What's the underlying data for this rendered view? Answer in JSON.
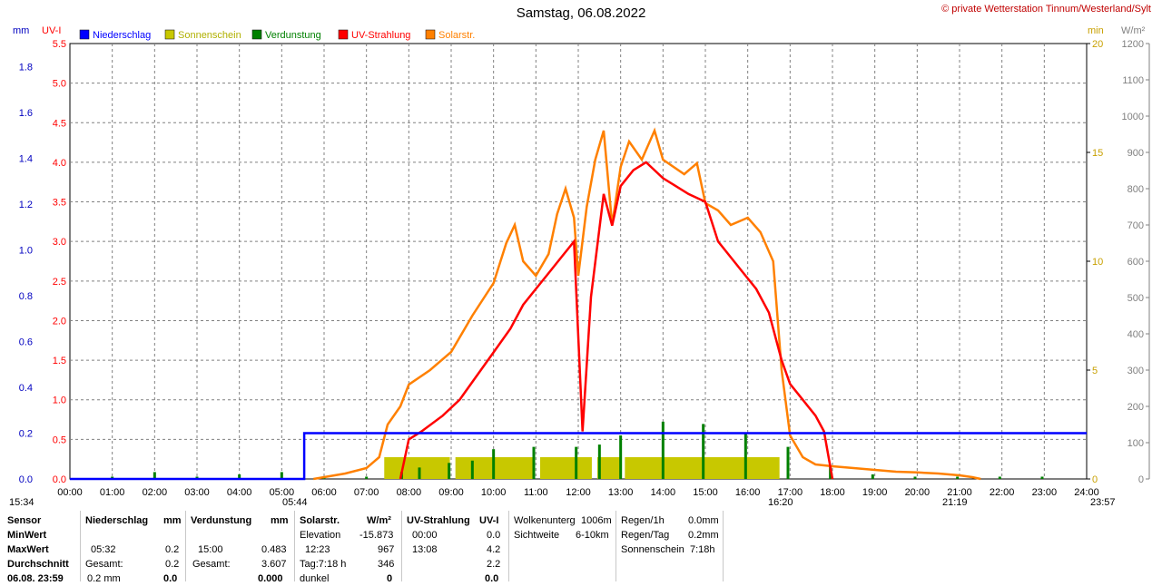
{
  "header": {
    "title": "Samstag, 06.08.2022",
    "copyright": "© private Wetterstation Tinnum/Westerland/Sylt"
  },
  "units": {
    "mm": "mm",
    "uvi": "UV-I",
    "min": "min",
    "wm2": "W/m²"
  },
  "colors": {
    "rain": "#0000ff",
    "sun": "#c8c800",
    "evap": "#008000",
    "uv": "#ff0000",
    "solar": "#ff8000",
    "grid": "#808080"
  },
  "chart_data": {
    "type": "line",
    "title": "Samstag, 06.08.2022",
    "legend": [
      {
        "name": "Niederschlag",
        "color": "#0000ff"
      },
      {
        "name": "Sonnenschein",
        "color": "#c8c800"
      },
      {
        "name": "Verdunstung",
        "color": "#008000"
      },
      {
        "name": "UV-Strahlung",
        "color": "#ff0000"
      },
      {
        "name": "Solarstr.",
        "color": "#ff8000"
      }
    ],
    "legend_placement": "top-left",
    "grid": true,
    "x_ticks": [
      "00:00",
      "01:00",
      "02:00",
      "03:00",
      "04:00",
      "05:00",
      "06:00",
      "07:00",
      "08:00",
      "09:00",
      "10:00",
      "11:00",
      "12:00",
      "13:00",
      "14:00",
      "15:00",
      "16:00",
      "17:00",
      "18:00",
      "19:00",
      "20:00",
      "21:00",
      "22:00",
      "23:00",
      "24:00"
    ],
    "xlim_hours": [
      0,
      24
    ],
    "axes": {
      "mm": {
        "ylim": [
          0,
          1.9
        ],
        "ticks": [
          "0.0",
          "0.2",
          "0.4",
          "0.6",
          "0.8",
          "1.0",
          "1.2",
          "1.4",
          "1.6",
          "1.8"
        ],
        "color": "#0000c0"
      },
      "uvi": {
        "ylim": [
          0,
          5.5
        ],
        "ticks": [
          "0.0",
          "0.5",
          "1.0",
          "1.5",
          "2.0",
          "2.5",
          "3.0",
          "3.5",
          "4.0",
          "4.5",
          "5.0",
          "5.5"
        ],
        "color": "#ff0000"
      },
      "min": {
        "ylim": [
          0,
          20
        ],
        "ticks": [
          "0",
          "5",
          "10",
          "15",
          "20"
        ],
        "color": "#c8a000"
      },
      "wm2": {
        "ylim": [
          0,
          1200
        ],
        "ticks": [
          "0",
          "100",
          "200",
          "300",
          "400",
          "500",
          "600",
          "700",
          "800",
          "900",
          "1000",
          "1100",
          "1200"
        ],
        "color": "#808080"
      }
    },
    "series": [
      {
        "name": "Niederschlag",
        "axis": "mm",
        "points": [
          [
            0,
            0
          ],
          [
            5.53,
            0
          ],
          [
            5.53,
            0.2
          ],
          [
            24,
            0.2
          ]
        ]
      },
      {
        "name": "Solarstr.",
        "axis": "wm2",
        "points": [
          [
            5.75,
            0
          ],
          [
            6.0,
            5
          ],
          [
            6.5,
            15
          ],
          [
            7.0,
            30
          ],
          [
            7.3,
            60
          ],
          [
            7.5,
            150
          ],
          [
            7.8,
            200
          ],
          [
            8.0,
            260
          ],
          [
            8.5,
            300
          ],
          [
            9.0,
            350
          ],
          [
            9.5,
            450
          ],
          [
            10.0,
            540
          ],
          [
            10.3,
            650
          ],
          [
            10.5,
            700
          ],
          [
            10.7,
            600
          ],
          [
            11.0,
            560
          ],
          [
            11.3,
            620
          ],
          [
            11.5,
            730
          ],
          [
            11.7,
            800
          ],
          [
            11.9,
            720
          ],
          [
            12.0,
            560
          ],
          [
            12.2,
            750
          ],
          [
            12.4,
            880
          ],
          [
            12.6,
            960
          ],
          [
            12.8,
            700
          ],
          [
            13.0,
            860
          ],
          [
            13.2,
            930
          ],
          [
            13.5,
            880
          ],
          [
            13.8,
            960
          ],
          [
            14.0,
            880
          ],
          [
            14.5,
            840
          ],
          [
            14.8,
            870
          ],
          [
            15.0,
            760
          ],
          [
            15.3,
            740
          ],
          [
            15.6,
            700
          ],
          [
            16.0,
            720
          ],
          [
            16.3,
            680
          ],
          [
            16.6,
            600
          ],
          [
            16.8,
            300
          ],
          [
            17.0,
            120
          ],
          [
            17.3,
            60
          ],
          [
            17.6,
            40
          ],
          [
            18.0,
            35
          ],
          [
            18.5,
            30
          ],
          [
            19.0,
            25
          ],
          [
            19.5,
            20
          ],
          [
            20.0,
            18
          ],
          [
            20.5,
            15
          ],
          [
            21.0,
            10
          ],
          [
            21.3,
            5
          ],
          [
            21.5,
            0
          ]
        ]
      },
      {
        "name": "UV-Strahlung",
        "axis": "uvi",
        "points": [
          [
            7.8,
            0
          ],
          [
            8.0,
            0.5
          ],
          [
            8.3,
            0.6
          ],
          [
            8.8,
            0.8
          ],
          [
            9.2,
            1.0
          ],
          [
            9.6,
            1.3
          ],
          [
            10.0,
            1.6
          ],
          [
            10.4,
            1.9
          ],
          [
            10.7,
            2.2
          ],
          [
            11.0,
            2.4
          ],
          [
            11.3,
            2.6
          ],
          [
            11.6,
            2.8
          ],
          [
            11.9,
            3.0
          ],
          [
            12.1,
            0.6
          ],
          [
            12.3,
            2.3
          ],
          [
            12.6,
            3.6
          ],
          [
            12.8,
            3.2
          ],
          [
            13.0,
            3.7
          ],
          [
            13.3,
            3.9
          ],
          [
            13.6,
            4.0
          ],
          [
            14.0,
            3.8
          ],
          [
            14.3,
            3.7
          ],
          [
            14.6,
            3.6
          ],
          [
            15.0,
            3.5
          ],
          [
            15.3,
            3.0
          ],
          [
            15.6,
            2.8
          ],
          [
            15.9,
            2.6
          ],
          [
            16.2,
            2.4
          ],
          [
            16.5,
            2.1
          ],
          [
            16.8,
            1.5
          ],
          [
            17.0,
            1.2
          ],
          [
            17.3,
            1.0
          ],
          [
            17.6,
            0.8
          ],
          [
            17.8,
            0.6
          ],
          [
            18.0,
            0
          ]
        ]
      },
      {
        "name": "Sonnenschein",
        "axis": "min",
        "segments": [
          [
            7.42,
            8.97
          ],
          [
            9.1,
            10.97
          ],
          [
            11.1,
            12.32
          ],
          [
            12.45,
            13.03
          ],
          [
            13.1,
            16.75
          ]
        ],
        "value": 1
      },
      {
        "name": "Verdunstung",
        "axis": "mm",
        "spike_times": [
          1.0,
          2.0,
          3.0,
          4.0,
          5.0,
          6.0,
          7.0,
          7.83,
          8.25,
          8.95,
          9.5,
          10.0,
          10.95,
          11.95,
          12.5,
          13.0,
          14.0,
          14.95,
          15.95,
          16.95,
          17.95,
          18.95,
          19.95,
          20.95,
          21.95,
          22.95
        ],
        "spike_values": [
          0.01,
          0.03,
          0.01,
          0.02,
          0.03,
          0.01,
          0.01,
          0.03,
          0.05,
          0.07,
          0.08,
          0.13,
          0.14,
          0.14,
          0.15,
          0.19,
          0.25,
          0.24,
          0.2,
          0.14,
          0.06,
          0.02,
          0.01,
          0.01,
          0.01,
          0.01
        ]
      }
    ],
    "markers": {
      "left": "15:34",
      "sunrise": "05:44",
      "bottom_right_1": "16:20",
      "sunset": "21:19",
      "right": "23:57"
    }
  },
  "table": {
    "col_sensor": {
      "header": "Sensor",
      "rows": [
        "MinWert",
        "MaxWert",
        "Durchschnitt",
        "06.08. 23:59"
      ]
    },
    "col_rain": {
      "header": "Niederschlag",
      "unit": "mm",
      "rows": [
        [
          "05:32",
          "0.2"
        ],
        [
          "Gesamt:",
          "0.2"
        ],
        [
          "0.2 mm",
          "0.0"
        ]
      ]
    },
    "col_evap": {
      "header": "Verdunstung",
      "unit": "mm",
      "rows": [
        [
          "15:00",
          "0.483"
        ],
        [
          "Gesamt:",
          "3.607"
        ],
        [
          "",
          "0.000"
        ]
      ]
    },
    "col_solar": {
      "header": "Solarstr.",
      "unit": "W/m²",
      "rows": [
        [
          "Elevation",
          "-15.873"
        ],
        [
          "12:23",
          "967"
        ],
        [
          "Tag:7:18 h",
          "346"
        ],
        [
          "dunkel",
          "0"
        ]
      ]
    },
    "col_uv": {
      "header": "UV-Strahlung",
      "unit": "UV-I",
      "rows": [
        [
          "00:00",
          "0.0"
        ],
        [
          "13:08",
          "4.2"
        ],
        [
          "",
          "2.2"
        ],
        [
          "",
          "0.0"
        ]
      ]
    },
    "col_cloud": {
      "rows": [
        [
          "Wolkenunterg",
          "1006m"
        ],
        [
          "Sichtweite",
          "6-10km"
        ]
      ]
    },
    "col_rainstats": {
      "rows": [
        [
          "Regen/1h",
          "0.0mm"
        ],
        [
          "Regen/Tag",
          "0.2mm"
        ],
        [
          "Sonnenschein",
          "7:18h"
        ]
      ]
    }
  }
}
